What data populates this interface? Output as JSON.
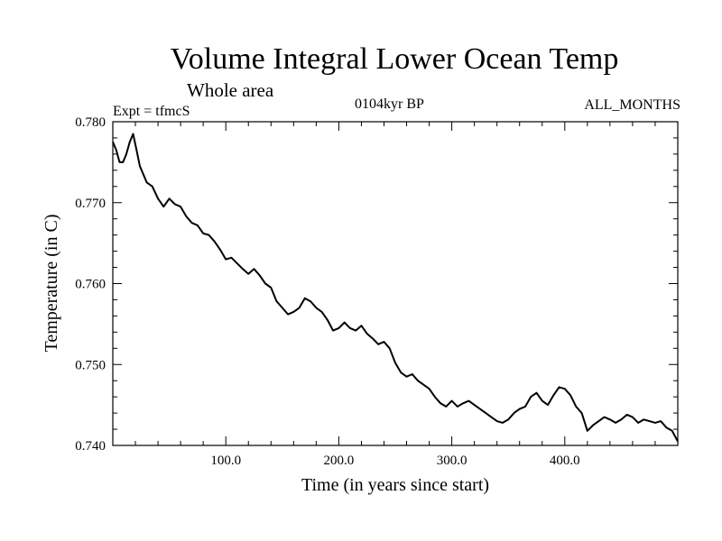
{
  "chart_data": {
    "type": "line",
    "title": "Volume Integral Lower Ocean Temp",
    "subtitle": "Whole area",
    "experiment": "Expt = tfmcS",
    "period": "0104kyr BP",
    "months": "ALL_MONTHS",
    "xlabel": "Time (in years since start)",
    "ylabel": "Temperature (in C)",
    "xlim": [
      0,
      500
    ],
    "ylim": [
      0.74,
      0.78
    ],
    "x_ticks": [
      100,
      200,
      300,
      400
    ],
    "x_tick_labels": [
      "100.0",
      "200.0",
      "300.0",
      "400.0"
    ],
    "y_ticks": [
      0.74,
      0.75,
      0.76,
      0.77,
      0.78
    ],
    "y_tick_labels": [
      "0.740",
      "0.750",
      "0.760",
      "0.770",
      "0.780"
    ],
    "line_color": "#000000",
    "series": [
      {
        "x": [
          0,
          3,
          6,
          9,
          12,
          15,
          18,
          21,
          24,
          27,
          30,
          35,
          40,
          45,
          50,
          55,
          60,
          65,
          70,
          75,
          80,
          85,
          90,
          95,
          100,
          105,
          110,
          115,
          120,
          125,
          130,
          135,
          140,
          145,
          150,
          155,
          160,
          165,
          170,
          175,
          180,
          185,
          190,
          195,
          200,
          205,
          210,
          215,
          220,
          225,
          230,
          235,
          240,
          245,
          250,
          255,
          260,
          265,
          270,
          275,
          280,
          285,
          290,
          295,
          300,
          305,
          310,
          315,
          320,
          325,
          330,
          335,
          340,
          345,
          350,
          355,
          360,
          365,
          370,
          375,
          380,
          385,
          390,
          395,
          400,
          405,
          410,
          415,
          420,
          425,
          430,
          435,
          440,
          445,
          450,
          455,
          460,
          465,
          470,
          475,
          480,
          485,
          490,
          495,
          500
        ],
        "values": [
          0.7775,
          0.7765,
          0.775,
          0.775,
          0.776,
          0.7775,
          0.7785,
          0.7765,
          0.7745,
          0.7735,
          0.7725,
          0.772,
          0.7705,
          0.7695,
          0.7705,
          0.7698,
          0.7695,
          0.7683,
          0.7675,
          0.7672,
          0.7662,
          0.766,
          0.7652,
          0.7642,
          0.763,
          0.7632,
          0.7625,
          0.7618,
          0.7612,
          0.7618,
          0.761,
          0.76,
          0.7595,
          0.7578,
          0.757,
          0.7562,
          0.7565,
          0.757,
          0.7582,
          0.7578,
          0.757,
          0.7565,
          0.7555,
          0.7542,
          0.7545,
          0.7552,
          0.7545,
          0.7542,
          0.7548,
          0.7538,
          0.7532,
          0.7525,
          0.7528,
          0.752,
          0.7502,
          0.749,
          0.7485,
          0.7488,
          0.748,
          0.7475,
          0.747,
          0.746,
          0.7452,
          0.7448,
          0.7455,
          0.7448,
          0.7452,
          0.7455,
          0.745,
          0.7445,
          0.744,
          0.7435,
          0.743,
          0.7428,
          0.7432,
          0.744,
          0.7445,
          0.7448,
          0.746,
          0.7465,
          0.7455,
          0.745,
          0.7462,
          0.7472,
          0.747,
          0.7462,
          0.7448,
          0.744,
          0.7418,
          0.7425,
          0.743,
          0.7435,
          0.7432,
          0.7428,
          0.7432,
          0.7438,
          0.7435,
          0.7428,
          0.7432,
          0.743,
          0.7428,
          0.743,
          0.7422,
          0.7418,
          0.7405
        ]
      }
    ]
  }
}
